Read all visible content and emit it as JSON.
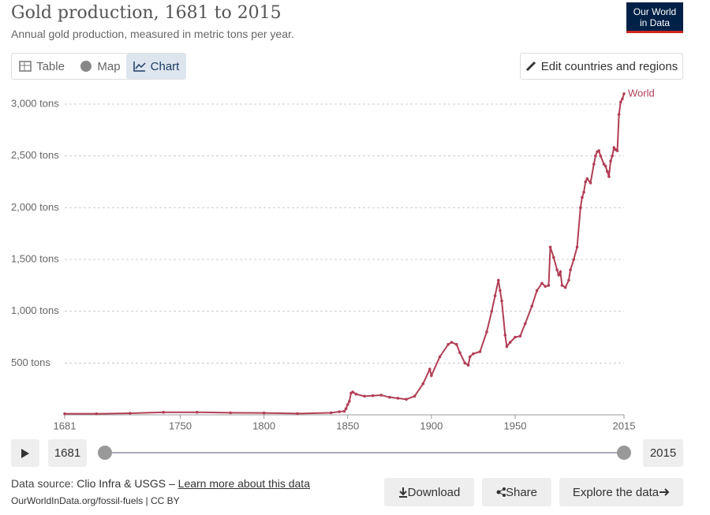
{
  "header": {
    "title": "Gold production, 1681 to 2015",
    "subtitle": "Annual gold production, measured in metric tons per year.",
    "logo": [
      "Our World",
      "in Data"
    ]
  },
  "tabs": [
    "Table",
    "Map",
    "Chart"
  ],
  "edit_button": "Edit countries and regions",
  "timeline": {
    "start": 1681,
    "end": 2015
  },
  "footer": {
    "source_label": "Data source:",
    "source": "Clio Infra & USGS –",
    "learn_more": "Learn more about this data",
    "url": "OurWorldInData.org/fossil-fuels | CC BY",
    "buttons": [
      "Download",
      "Share",
      "Explore the data"
    ]
  },
  "chart_data": {
    "type": "line",
    "x": [
      1681,
      1700,
      1720,
      1740,
      1760,
      1780,
      1800,
      1820,
      1840,
      1845,
      1848,
      1849,
      1850,
      1851,
      1852,
      1853,
      1855,
      1860,
      1865,
      1870,
      1875,
      1880,
      1885,
      1890,
      1895,
      1899,
      1900,
      1905,
      1910,
      1912,
      1915,
      1917,
      1920,
      1922,
      1923,
      1925,
      1929,
      1933,
      1936,
      1938,
      1940,
      1941,
      1942,
      1944,
      1945,
      1947,
      1950,
      1953,
      1956,
      1960,
      1963,
      1966,
      1968,
      1970,
      1971,
      1973,
      1975,
      1976,
      1977,
      1978,
      1980,
      1982,
      1983,
      1985,
      1987,
      1989,
      1990,
      1991,
      1992,
      1993,
      1995,
      1997,
      1998,
      1999,
      2000,
      2001,
      2003,
      2004,
      2005,
      2006,
      2007,
      2008,
      2009,
      2010,
      2011,
      2012,
      2013,
      2014,
      2015
    ],
    "series": [
      {
        "name": "World",
        "color": "#b13f55",
        "values": [
          10,
          10,
          15,
          25,
          25,
          20,
          18,
          12,
          20,
          30,
          35,
          60,
          100,
          130,
          210,
          220,
          200,
          180,
          185,
          190,
          170,
          160,
          150,
          180,
          300,
          440,
          380,
          560,
          680,
          700,
          680,
          600,
          500,
          480,
          560,
          590,
          610,
          800,
          1000,
          1150,
          1300,
          1200,
          1100,
          770,
          660,
          700,
          750,
          760,
          880,
          1050,
          1200,
          1270,
          1240,
          1250,
          1620,
          1520,
          1400,
          1350,
          1380,
          1250,
          1230,
          1300,
          1400,
          1500,
          1620,
          2000,
          2100,
          2150,
          2250,
          2280,
          2240,
          2420,
          2500,
          2540,
          2550,
          2500,
          2420,
          2400,
          2350,
          2300,
          2450,
          2500,
          2580,
          2560,
          2550,
          2900,
          3020,
          3050,
          3100
        ]
      }
    ],
    "xlim": [
      1681,
      2015
    ],
    "xticks": [
      1681,
      1750,
      1800,
      1850,
      1900,
      1950,
      2015
    ],
    "ylim": [
      0,
      3000
    ],
    "yticks": [
      {
        "value": 500,
        "label": "500 tons"
      },
      {
        "value": 1000,
        "label": "1,000 tons"
      },
      {
        "value": 1500,
        "label": "1,500 tons"
      },
      {
        "value": 2000,
        "label": "2,000 tons"
      },
      {
        "value": 2500,
        "label": "2,500 tons"
      },
      {
        "value": 3000,
        "label": "3,000 tons"
      }
    ],
    "grid": true
  }
}
